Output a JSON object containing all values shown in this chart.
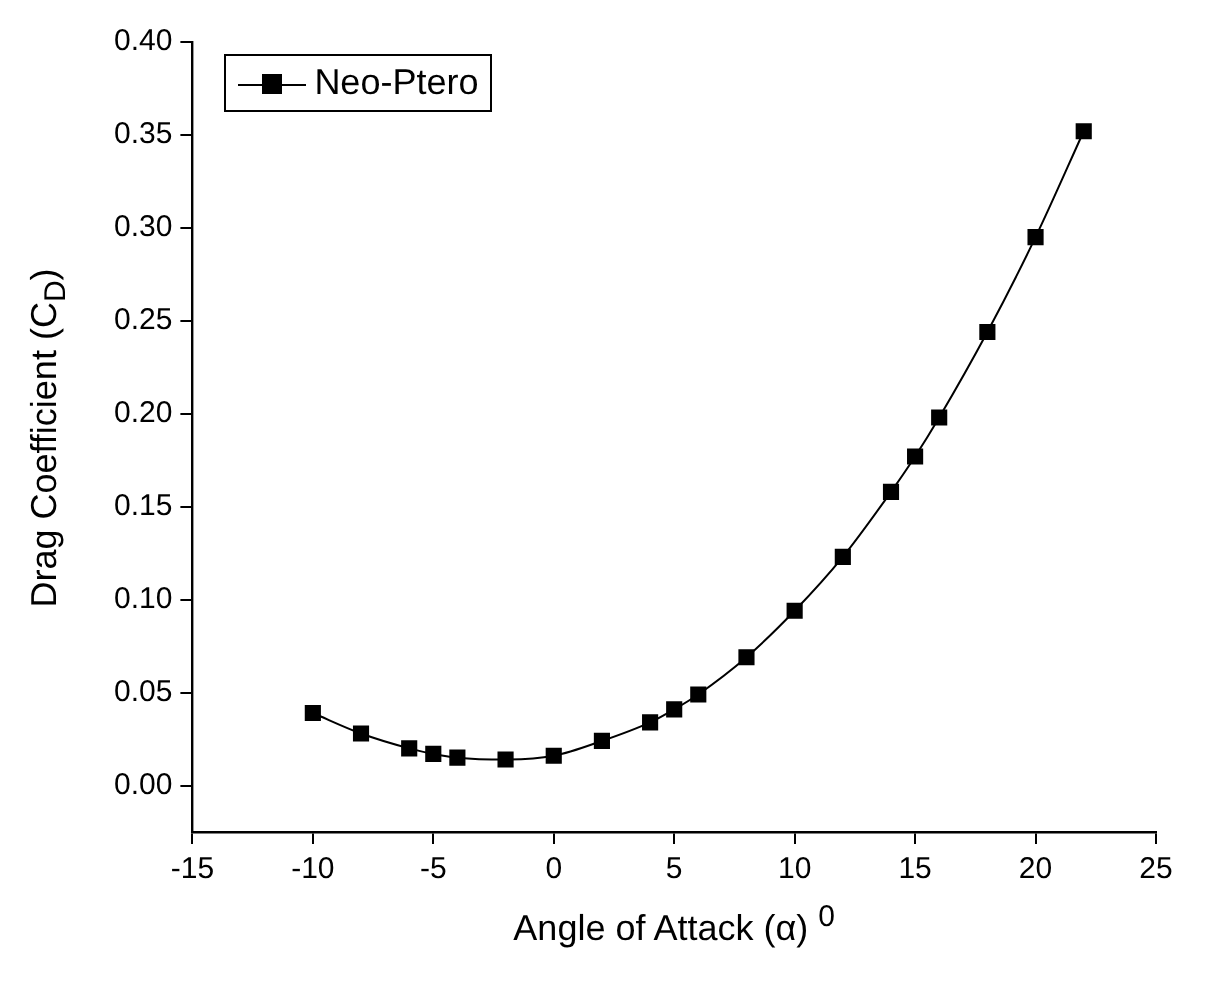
{
  "chart_data": {
    "type": "line",
    "xlabel": "Angle of Attack (α) $^{0}$",
    "ylabel": "Drag Coefficient (C$_{D}$)",
    "x": [
      -10,
      -8,
      -6,
      -5,
      -4,
      -2,
      0,
      2,
      4,
      5,
      6,
      8,
      10,
      12,
      14,
      15,
      16,
      18,
      20,
      22
    ],
    "series": [
      {
        "name": "Neo-Ptero",
        "color": "#000000",
        "values": [
          0.039,
          0.028,
          0.02,
          0.017,
          0.015,
          0.014,
          0.016,
          0.024,
          0.034,
          0.041,
          0.049,
          0.069,
          0.094,
          0.123,
          0.158,
          0.177,
          0.198,
          0.244,
          0.295,
          0.352
        ]
      }
    ],
    "xlim": [
      -15,
      25
    ],
    "xticks": [
      -15,
      -10,
      -5,
      0,
      5,
      10,
      15,
      20,
      25
    ],
    "ylim": [
      -0.025,
      0.4
    ],
    "yticks": [
      {
        "value": 0,
        "label": "0.00"
      },
      0.05,
      {
        "value": 0.1,
        "label": "0.10"
      },
      0.15,
      {
        "value": 0.2,
        "label": "0.20"
      },
      0.25,
      {
        "value": 0.3,
        "label": "0.30"
      },
      0.35,
      {
        "value": 0.4,
        "label": "0.40"
      }
    ],
    "grid": false,
    "legend": "top left",
    "marker": "square",
    "line_style": "solid"
  }
}
